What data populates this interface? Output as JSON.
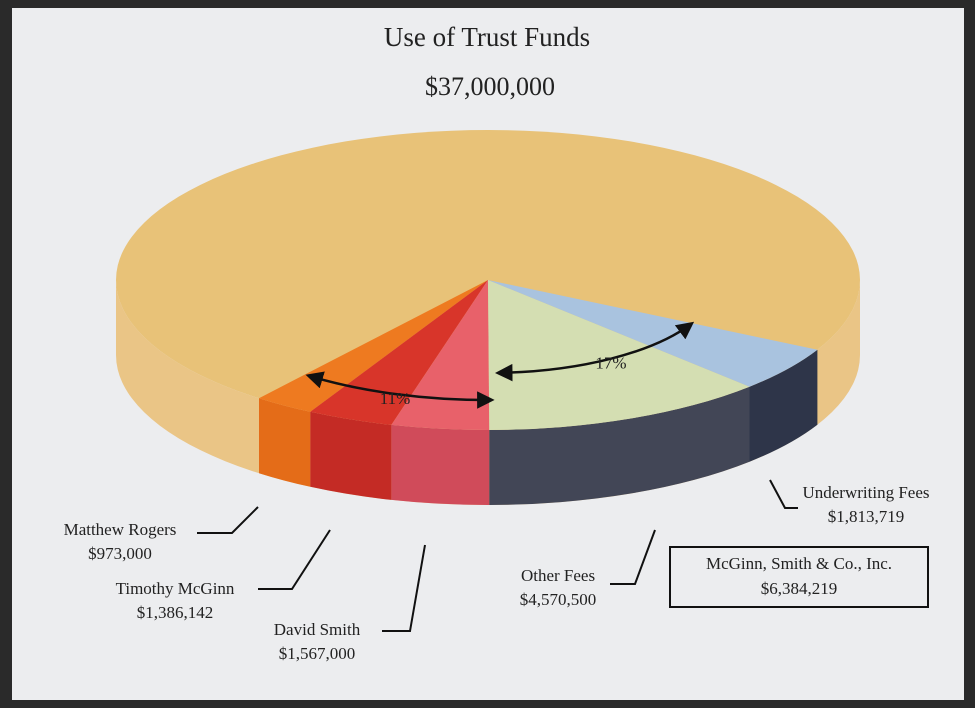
{
  "chart_data": {
    "type": "pie3d",
    "title": "Use of Trust Funds",
    "total": {
      "value": 37000000,
      "label": "$37,000,000"
    },
    "categories": [
      "Matthew Rogers",
      "Timothy McGinn",
      "David Smith",
      "Other Fees",
      "Underwriting Fees"
    ],
    "values": [
      973000,
      1386142,
      1567000,
      4570500,
      1813719
    ],
    "value_labels": [
      "$973,000",
      "$1,386,142",
      "$1,567,000",
      "$4,570,500",
      "$1,813,719"
    ],
    "colors": [
      "#ee7a20",
      "#d8352a",
      "#e8616a",
      "#d4deb2",
      "#a9c3df"
    ],
    "side_colors": [
      "#e46c18",
      "#c42b25",
      "#d04b5a",
      "#424656",
      "#2e3549"
    ],
    "base_color": "#e8c278",
    "base_side_color": "#eac586",
    "annotations": [
      {
        "value": 11,
        "label": "11%"
      },
      {
        "value": 17,
        "label": "17%"
      }
    ],
    "group_box": {
      "label": "McGinn, Smith & Co., Inc.",
      "value": 6384219,
      "value_label": "$6,384,219"
    }
  }
}
